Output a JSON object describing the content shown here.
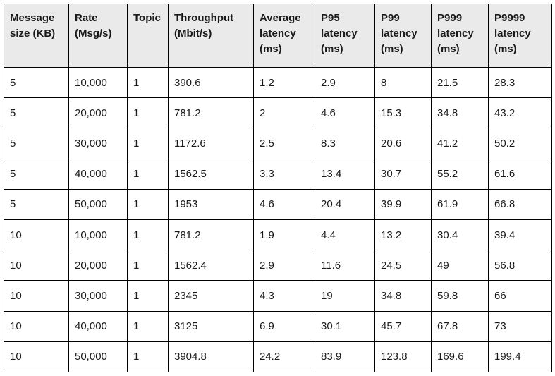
{
  "colors": {
    "header_background": "#eaeaea",
    "border": "#000000",
    "text": "#1a1a1a",
    "row_background": "#ffffff"
  },
  "table": {
    "columns": [
      {
        "label": "Message size (KB)"
      },
      {
        "label": "Rate (Msg/s)"
      },
      {
        "label": "Topic"
      },
      {
        "label": "Throughput (Mbit/s)"
      },
      {
        "label": "Average latency (ms)"
      },
      {
        "label": "P95 latency (ms)"
      },
      {
        "label": "P99 latency (ms)"
      },
      {
        "label": "P999 latency (ms)"
      },
      {
        "label": "P9999 latency (ms)"
      }
    ],
    "rows": [
      [
        "5",
        "10,000",
        "1",
        "390.6",
        "1.2",
        "2.9",
        "8",
        "21.5",
        "28.3"
      ],
      [
        "5",
        "20,000",
        "1",
        "781.2",
        "2",
        "4.6",
        "15.3",
        "34.8",
        "43.2"
      ],
      [
        "5",
        "30,000",
        "1",
        "1172.6",
        "2.5",
        "8.3",
        "20.6",
        "41.2",
        "50.2"
      ],
      [
        "5",
        "40,000",
        "1",
        "1562.5",
        "3.3",
        "13.4",
        "30.7",
        "55.2",
        "61.6"
      ],
      [
        "5",
        "50,000",
        "1",
        "1953",
        "4.6",
        "20.4",
        "39.9",
        "61.9",
        "66.8"
      ],
      [
        "10",
        "10,000",
        "1",
        "781.2",
        "1.9",
        "4.4",
        "13.2",
        "30.4",
        "39.4"
      ],
      [
        "10",
        "20,000",
        "1",
        "1562.4",
        "2.9",
        "11.6",
        "24.5",
        "49",
        "56.8"
      ],
      [
        "10",
        "30,000",
        "1",
        "2345",
        "4.3",
        "19",
        "34.8",
        "59.8",
        "66"
      ],
      [
        "10",
        "40,000",
        "1",
        "3125",
        "6.9",
        "30.1",
        "45.7",
        "67.8",
        "73"
      ],
      [
        "10",
        "50,000",
        "1",
        "3904.8",
        "24.2",
        "83.9",
        "123.8",
        "169.6",
        "199.4"
      ]
    ]
  }
}
